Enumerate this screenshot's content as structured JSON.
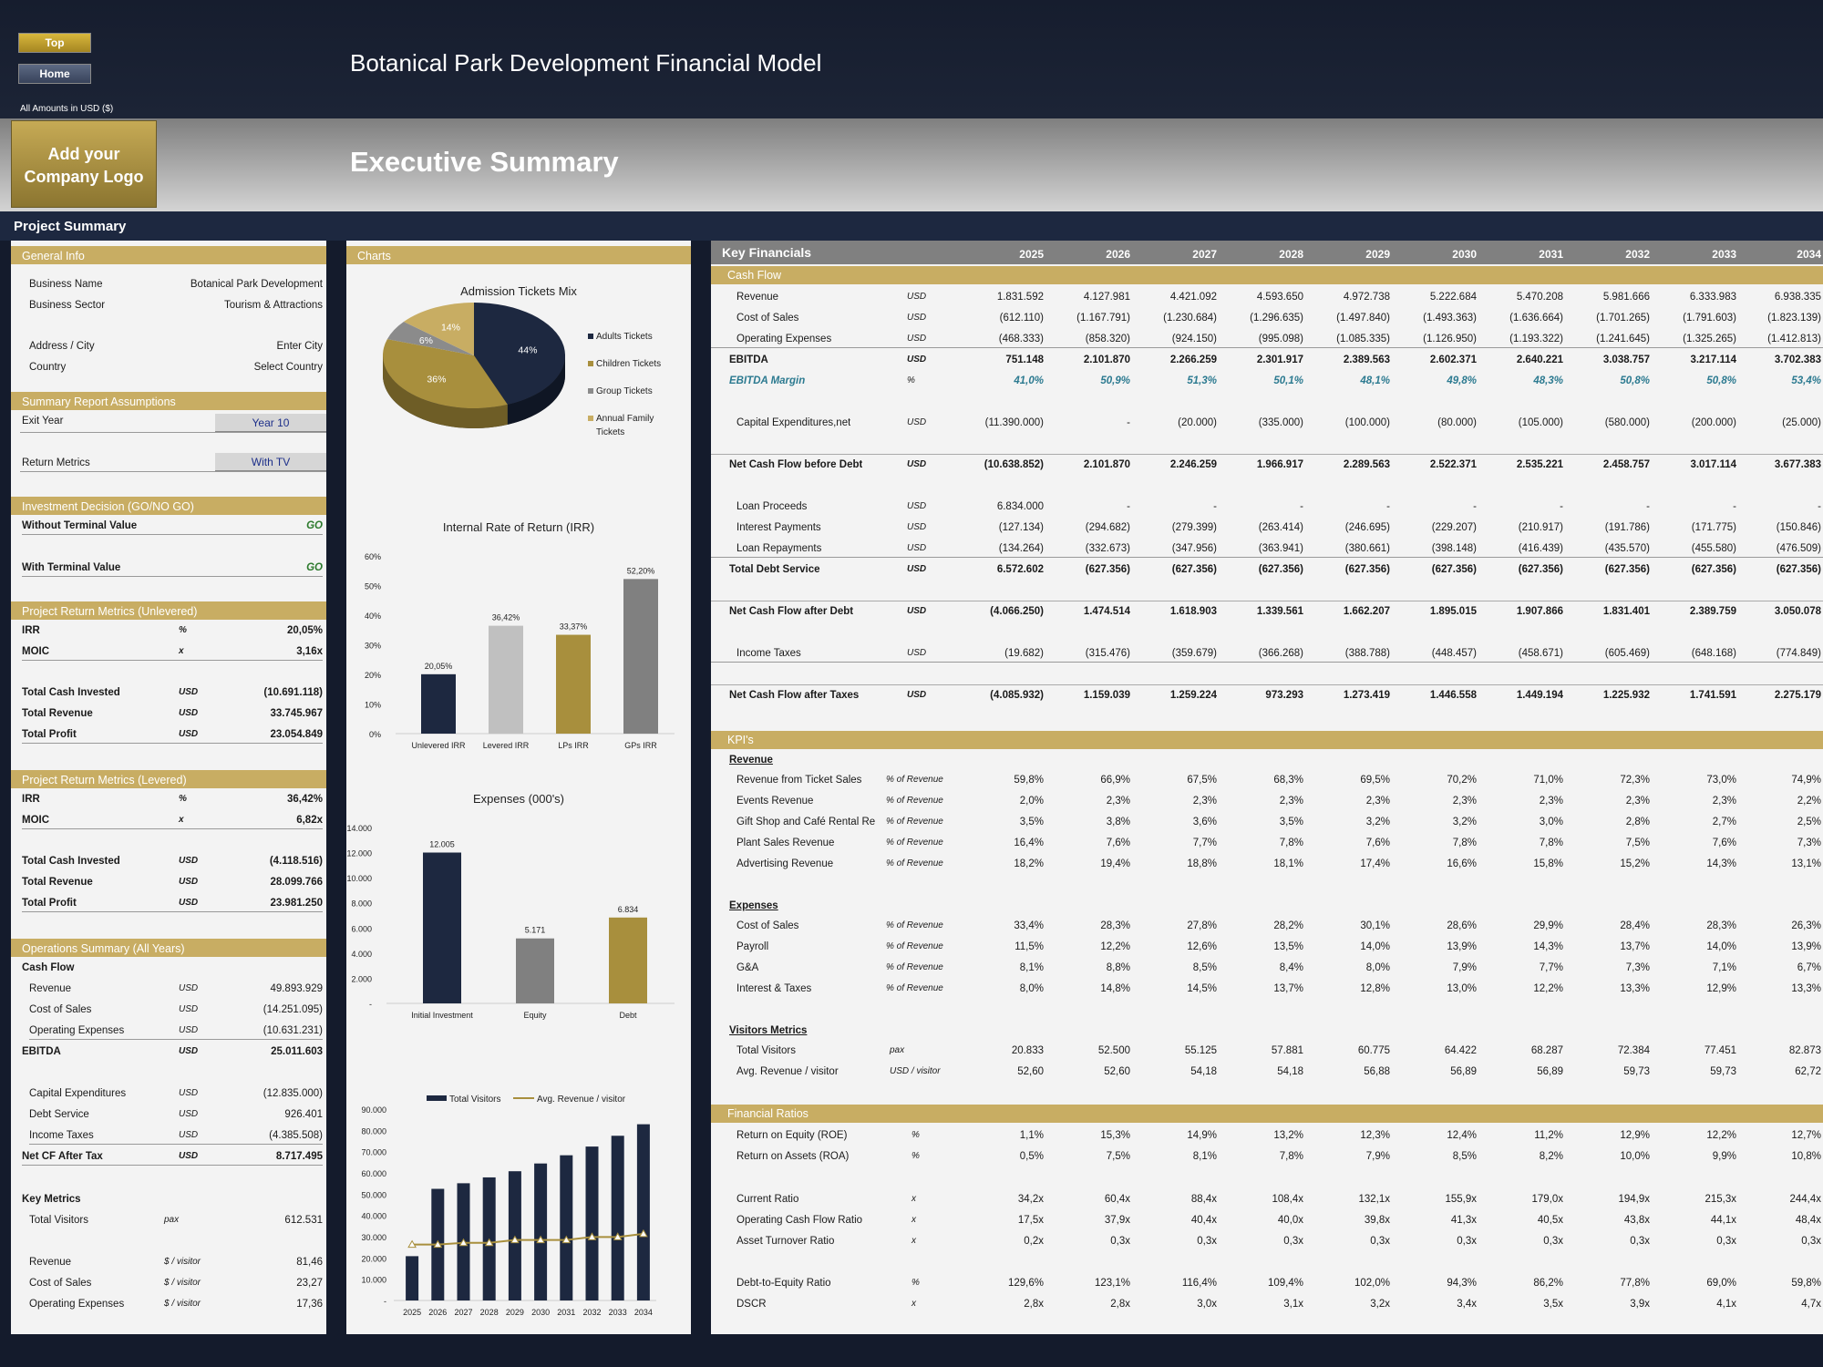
{
  "nav": {
    "top": "Top",
    "home": "Home"
  },
  "header": {
    "title": "Botanical Park Development Financial Model",
    "amounts": "All Amounts in  USD ($)",
    "logo_line1": "Add your",
    "logo_line2": "Company Logo",
    "subtitle": "Executive Summary",
    "project_summary": "Project Summary"
  },
  "general_info": {
    "title": "General Info",
    "rows": [
      [
        "Business Name",
        "Botanical Park Development"
      ],
      [
        "Business Sector",
        "Tourism & Attractions"
      ],
      [
        "Address / City",
        "Enter City"
      ],
      [
        "Country",
        "Select Country"
      ]
    ]
  },
  "assumptions": {
    "title": "Summary  Report Assumptions",
    "exit_label": "Exit Year",
    "exit_value": "Year 10",
    "return_label": "Return Metrics",
    "return_value": "With TV"
  },
  "decision": {
    "title": "Investment Decision (GO/NO GO)",
    "rows": [
      [
        "Without Terminal Value",
        "GO"
      ],
      [
        "With Terminal Value",
        "GO"
      ]
    ]
  },
  "unlevered": {
    "title": "Project Return Metrics (Unlevered)",
    "rows": [
      [
        "IRR",
        "%",
        "20,05%"
      ],
      [
        "MOIC",
        "x",
        "3,16x"
      ],
      [
        "Total Cash Invested",
        "USD",
        "(10.691.118)"
      ],
      [
        "Total Revenue",
        "USD",
        "33.745.967"
      ],
      [
        "Total Profit",
        "USD",
        "23.054.849"
      ]
    ]
  },
  "levered": {
    "title": "Project Return Metrics (Levered)",
    "rows": [
      [
        "IRR",
        "%",
        "36,42%"
      ],
      [
        "MOIC",
        "x",
        "6,82x"
      ],
      [
        "Total Cash Invested",
        "USD",
        "(4.118.516)"
      ],
      [
        "Total Revenue",
        "USD",
        "28.099.766"
      ],
      [
        "Total Profit",
        "USD",
        "23.981.250"
      ]
    ]
  },
  "operations": {
    "title": "Operations Summary (All Years)",
    "cashflow_label": "Cash Flow",
    "rows": [
      [
        "Revenue",
        "USD",
        "49.893.929"
      ],
      [
        "Cost of Sales",
        "USD",
        "(14.251.095)"
      ],
      [
        "Operating Expenses",
        "USD",
        "(10.631.231)"
      ],
      [
        "EBITDA",
        "USD",
        "25.011.603"
      ],
      [
        "Capital Expenditures",
        "USD",
        "(12.835.000)"
      ],
      [
        "Debt Service",
        "USD",
        "926.401"
      ],
      [
        "Income Taxes",
        "USD",
        "(4.385.508)"
      ],
      [
        "Net CF After Tax",
        "USD",
        "8.717.495"
      ]
    ],
    "key_metrics_label": "Key Metrics",
    "metrics": [
      [
        "Total Visitors",
        "pax",
        "612.531"
      ],
      [
        "Revenue",
        "$ / visitor",
        "81,46"
      ],
      [
        "Cost of Sales",
        "$ / visitor",
        "23,27"
      ],
      [
        "Operating Expenses",
        "$ / visitor",
        "17,36"
      ]
    ]
  },
  "charts_title": "Charts",
  "chart_data": [
    {
      "type": "pie",
      "title": "Admission Tickets Mix",
      "categories": [
        "Adults Tickets",
        "Children Tickets",
        "Group Tickets",
        "Annual Family Tickets"
      ],
      "values": [
        44,
        36,
        6,
        14
      ],
      "labels": [
        "44%",
        "36%",
        "6%",
        "14%"
      ],
      "colors": [
        "#1d2840",
        "#a88f3d",
        "#8b8b8b",
        "#c8ad63"
      ]
    },
    {
      "type": "bar",
      "title": "Internal Rate of Return (IRR)",
      "categories": [
        "Unlevered IRR",
        "Levered IRR",
        "LPs IRR",
        "GPs IRR"
      ],
      "values": [
        20.05,
        36.42,
        33.37,
        52.2
      ],
      "labels": [
        "20,05%",
        "36,42%",
        "33,37%",
        "52,20%"
      ],
      "yticks": [
        "0%",
        "10%",
        "20%",
        "30%",
        "40%",
        "50%",
        "60%"
      ],
      "ylim": [
        0,
        60
      ],
      "colors": [
        "#1d2840",
        "#c0c0c0",
        "#a88f3d",
        "#808080"
      ]
    },
    {
      "type": "bar",
      "title": "Expenses (000's)",
      "categories": [
        "Initial Investment",
        "Equity",
        "Debt"
      ],
      "values": [
        12005,
        5171,
        6834
      ],
      "labels": [
        "12.005",
        "5.171",
        "6.834"
      ],
      "yticks": [
        "-",
        "2.000",
        "4.000",
        "6.000",
        "8.000",
        "10.000",
        "12.000",
        "14.000"
      ],
      "ylim": [
        0,
        14000
      ],
      "colors": [
        "#1d2840",
        "#808080",
        "#a88f3d"
      ]
    },
    {
      "type": "bar",
      "title": "",
      "series": [
        {
          "name": "Total Visitors",
          "values": [
            20833,
            52500,
            55125,
            57881,
            60775,
            64422,
            68287,
            72384,
            77451,
            82873
          ]
        },
        {
          "name": "Avg. Revenue / visitor",
          "values": [
            52.6,
            52.6,
            54.18,
            54.18,
            56.88,
            56.89,
            56.89,
            59.73,
            59.73,
            62.72
          ]
        }
      ],
      "categories": [
        "2025",
        "2026",
        "2027",
        "2028",
        "2029",
        "2030",
        "2031",
        "2032",
        "2033",
        "2034"
      ],
      "yticks": [
        "-",
        "10.000",
        "20.000",
        "30.000",
        "40.000",
        "50.000",
        "60.000",
        "70.000",
        "80.000",
        "90.000"
      ],
      "ylim": [
        0,
        90000
      ]
    }
  ],
  "kf": {
    "title": "Key Financials",
    "years": [
      "2025",
      "2026",
      "2027",
      "2028",
      "2029",
      "2030",
      "2031",
      "2032",
      "2033",
      "2034"
    ],
    "cashflow_title": "Cash Flow",
    "rows": [
      {
        "label": "Revenue",
        "unit": "USD",
        "vals": [
          "1.831.592",
          "4.127.981",
          "4.421.092",
          "4.593.650",
          "4.972.738",
          "5.222.684",
          "5.470.208",
          "5.981.666",
          "6.333.983",
          "6.938.335"
        ]
      },
      {
        "label": "Cost of Sales",
        "unit": "USD",
        "vals": [
          "(612.110)",
          "(1.167.791)",
          "(1.230.684)",
          "(1.296.635)",
          "(1.497.840)",
          "(1.493.363)",
          "(1.636.664)",
          "(1.701.265)",
          "(1.791.603)",
          "(1.823.139)"
        ]
      },
      {
        "label": "Operating Expenses",
        "unit": "USD",
        "vals": [
          "(468.333)",
          "(858.320)",
          "(924.150)",
          "(995.098)",
          "(1.085.335)",
          "(1.126.950)",
          "(1.193.322)",
          "(1.241.645)",
          "(1.325.265)",
          "(1.412.813)"
        ]
      },
      {
        "label": "EBITDA",
        "unit": "USD",
        "vals": [
          "751.148",
          "2.101.870",
          "2.266.259",
          "2.301.917",
          "2.389.563",
          "2.602.371",
          "2.640.221",
          "3.038.757",
          "3.217.114",
          "3.702.383"
        ]
      },
      {
        "label": "EBITDA Margin",
        "unit": "%",
        "vals": [
          "41,0%",
          "50,9%",
          "51,3%",
          "50,1%",
          "48,1%",
          "49,8%",
          "48,3%",
          "50,8%",
          "50,8%",
          "53,4%"
        ]
      },
      {
        "label": "Capital Expenditures,net",
        "unit": "USD",
        "vals": [
          "(11.390.000)",
          "-",
          "(20.000)",
          "(335.000)",
          "(100.000)",
          "(80.000)",
          "(105.000)",
          "(580.000)",
          "(200.000)",
          "(25.000)"
        ]
      },
      {
        "label": "Net Cash Flow before Debt",
        "unit": "USD",
        "vals": [
          "(10.638.852)",
          "2.101.870",
          "2.246.259",
          "1.966.917",
          "2.289.563",
          "2.522.371",
          "2.535.221",
          "2.458.757",
          "3.017.114",
          "3.677.383"
        ]
      },
      {
        "label": "Loan Proceeds",
        "unit": "USD",
        "vals": [
          "6.834.000",
          "-",
          "-",
          "-",
          "-",
          "-",
          "-",
          "-",
          "-",
          "-"
        ]
      },
      {
        "label": "Interest Payments",
        "unit": "USD",
        "vals": [
          "(127.134)",
          "(294.682)",
          "(279.399)",
          "(263.414)",
          "(246.695)",
          "(229.207)",
          "(210.917)",
          "(191.786)",
          "(171.775)",
          "(150.846)"
        ]
      },
      {
        "label": "Loan Repayments",
        "unit": "USD",
        "vals": [
          "(134.264)",
          "(332.673)",
          "(347.956)",
          "(363.941)",
          "(380.661)",
          "(398.148)",
          "(416.439)",
          "(435.570)",
          "(455.580)",
          "(476.509)"
        ]
      },
      {
        "label": "Total Debt Service",
        "unit": "USD",
        "vals": [
          "6.572.602",
          "(627.356)",
          "(627.356)",
          "(627.356)",
          "(627.356)",
          "(627.356)",
          "(627.356)",
          "(627.356)",
          "(627.356)",
          "(627.356)"
        ]
      },
      {
        "label": "Net Cash Flow after Debt",
        "unit": "USD",
        "vals": [
          "(4.066.250)",
          "1.474.514",
          "1.618.903",
          "1.339.561",
          "1.662.207",
          "1.895.015",
          "1.907.866",
          "1.831.401",
          "2.389.759",
          "3.050.078"
        ]
      },
      {
        "label": "Income Taxes",
        "unit": "USD",
        "vals": [
          "(19.682)",
          "(315.476)",
          "(359.679)",
          "(366.268)",
          "(388.788)",
          "(448.457)",
          "(458.671)",
          "(605.469)",
          "(648.168)",
          "(774.849)"
        ]
      },
      {
        "label": "Net Cash Flow after Taxes",
        "unit": "USD",
        "vals": [
          "(4.085.932)",
          "1.159.039",
          "1.259.224",
          "973.293",
          "1.273.419",
          "1.446.558",
          "1.449.194",
          "1.225.932",
          "1.741.591",
          "2.275.179"
        ]
      }
    ]
  },
  "kpi": {
    "title": "KPI's",
    "revenue_label": "Revenue",
    "expenses_label": "Expenses",
    "visitors_label": "Visitors Metrics",
    "ratios_title": "Financial Ratios",
    "revenue": [
      {
        "label": "Revenue from Ticket Sales",
        "unit": "% of Revenue",
        "vals": [
          "59,8%",
          "66,9%",
          "67,5%",
          "68,3%",
          "69,5%",
          "70,2%",
          "71,0%",
          "72,3%",
          "73,0%",
          "74,9%"
        ]
      },
      {
        "label": "Events Revenue",
        "unit": "% of Revenue",
        "vals": [
          "2,0%",
          "2,3%",
          "2,3%",
          "2,3%",
          "2,3%",
          "2,3%",
          "2,3%",
          "2,3%",
          "2,3%",
          "2,2%"
        ]
      },
      {
        "label": "Gift Shop and Café Rental Re",
        "unit": "% of Revenue",
        "vals": [
          "3,5%",
          "3,8%",
          "3,6%",
          "3,5%",
          "3,2%",
          "3,2%",
          "3,0%",
          "2,8%",
          "2,7%",
          "2,5%"
        ]
      },
      {
        "label": "Plant Sales Revenue",
        "unit": "% of Revenue",
        "vals": [
          "16,4%",
          "7,6%",
          "7,7%",
          "7,8%",
          "7,6%",
          "7,8%",
          "7,8%",
          "7,5%",
          "7,6%",
          "7,3%"
        ]
      },
      {
        "label": "Advertising Revenue",
        "unit": "% of Revenue",
        "vals": [
          "18,2%",
          "19,4%",
          "18,8%",
          "18,1%",
          "17,4%",
          "16,6%",
          "15,8%",
          "15,2%",
          "14,3%",
          "13,1%"
        ]
      }
    ],
    "expenses": [
      {
        "label": "Cost of Sales",
        "unit": "% of Revenue",
        "vals": [
          "33,4%",
          "28,3%",
          "27,8%",
          "28,2%",
          "30,1%",
          "28,6%",
          "29,9%",
          "28,4%",
          "28,3%",
          "26,3%"
        ]
      },
      {
        "label": "Payroll",
        "unit": "% of Revenue",
        "vals": [
          "11,5%",
          "12,2%",
          "12,6%",
          "13,5%",
          "14,0%",
          "13,9%",
          "14,3%",
          "13,7%",
          "14,0%",
          "13,9%"
        ]
      },
      {
        "label": "G&A",
        "unit": "% of Revenue",
        "vals": [
          "8,1%",
          "8,8%",
          "8,5%",
          "8,4%",
          "8,0%",
          "7,9%",
          "7,7%",
          "7,3%",
          "7,1%",
          "6,7%"
        ]
      },
      {
        "label": "Interest & Taxes",
        "unit": "% of Revenue",
        "vals": [
          "8,0%",
          "14,8%",
          "14,5%",
          "13,7%",
          "12,8%",
          "13,0%",
          "12,2%",
          "13,3%",
          "12,9%",
          "13,3%"
        ]
      }
    ],
    "visitors": [
      {
        "label": "Total Visitors",
        "unit": "pax",
        "vals": [
          "20.833",
          "52.500",
          "55.125",
          "57.881",
          "60.775",
          "64.422",
          "68.287",
          "72.384",
          "77.451",
          "82.873"
        ]
      },
      {
        "label": "Avg. Revenue / visitor",
        "unit": "USD / visitor",
        "vals": [
          "52,60",
          "52,60",
          "54,18",
          "54,18",
          "56,88",
          "56,89",
          "56,89",
          "59,73",
          "59,73",
          "62,72"
        ]
      }
    ],
    "ratios": [
      {
        "label": "Return on Equity (ROE)",
        "unit": "%",
        "vals": [
          "1,1%",
          "15,3%",
          "14,9%",
          "13,2%",
          "12,3%",
          "12,4%",
          "11,2%",
          "12,9%",
          "12,2%",
          "12,7%"
        ]
      },
      {
        "label": "Return on Assets (ROA)",
        "unit": "%",
        "vals": [
          "0,5%",
          "7,5%",
          "8,1%",
          "7,8%",
          "7,9%",
          "8,5%",
          "8,2%",
          "10,0%",
          "9,9%",
          "10,8%"
        ]
      },
      {
        "label": "Current Ratio",
        "unit": "x",
        "vals": [
          "34,2x",
          "60,4x",
          "88,4x",
          "108,4x",
          "132,1x",
          "155,9x",
          "179,0x",
          "194,9x",
          "215,3x",
          "244,4x"
        ]
      },
      {
        "label": "Operating Cash Flow Ratio",
        "unit": "x",
        "vals": [
          "17,5x",
          "37,9x",
          "40,4x",
          "40,0x",
          "39,8x",
          "41,3x",
          "40,5x",
          "43,8x",
          "44,1x",
          "48,4x"
        ]
      },
      {
        "label": "Asset Turnover Ratio",
        "unit": "x",
        "vals": [
          "0,2x",
          "0,3x",
          "0,3x",
          "0,3x",
          "0,3x",
          "0,3x",
          "0,3x",
          "0,3x",
          "0,3x",
          "0,3x"
        ]
      },
      {
        "label": "Debt-to-Equity Ratio",
        "unit": "%",
        "vals": [
          "129,6%",
          "123,1%",
          "116,4%",
          "109,4%",
          "102,0%",
          "94,3%",
          "86,2%",
          "77,8%",
          "69,0%",
          "59,8%"
        ]
      },
      {
        "label": "DSCR",
        "unit": "x",
        "vals": [
          "2,8x",
          "2,8x",
          "3,0x",
          "3,1x",
          "3,2x",
          "3,4x",
          "3,5x",
          "3,9x",
          "4,1x",
          "4,7x"
        ]
      }
    ]
  }
}
